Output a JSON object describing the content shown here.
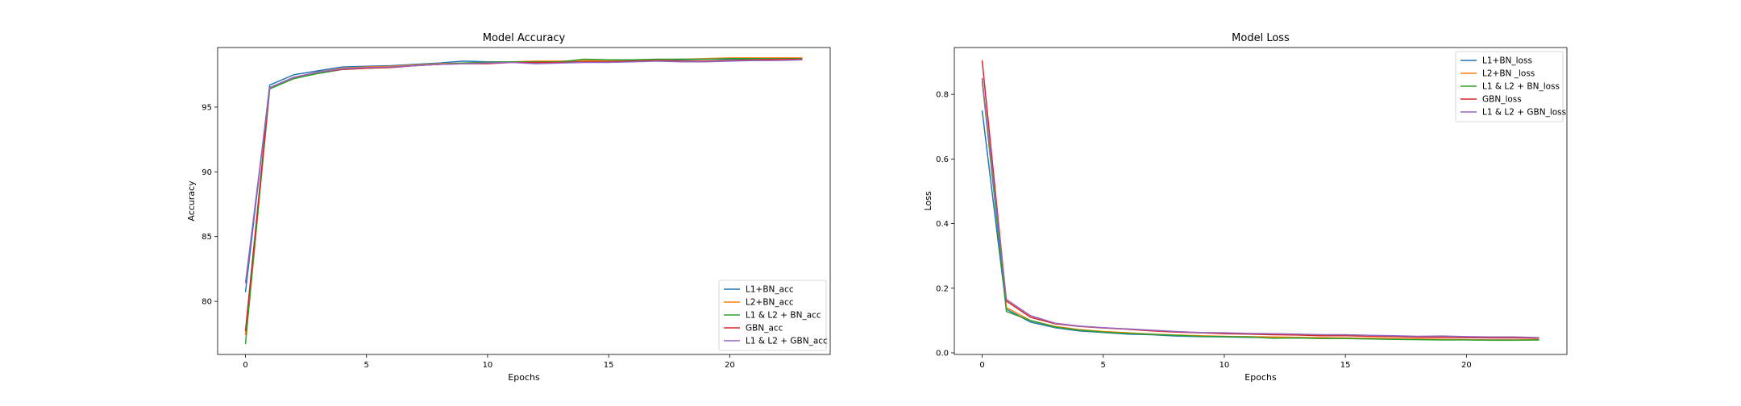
{
  "chart_data": [
    {
      "type": "line",
      "title": "Model Accuracy",
      "xlabel": "Epochs",
      "ylabel": "Accuracy",
      "xlim": [
        -1.15,
        24.15
      ],
      "ylim": [
        75.9,
        99.6
      ],
      "xticks": [
        0,
        5,
        10,
        15,
        20
      ],
      "yticks": [
        80,
        85,
        90,
        95
      ],
      "x_tick_labels": [
        "0",
        "5",
        "10",
        "15",
        "20"
      ],
      "y_tick_labels": [
        "80",
        "85",
        "90",
        "95"
      ],
      "grid": false,
      "legend_position": "lower-right",
      "x": [
        0,
        1,
        2,
        3,
        4,
        5,
        6,
        7,
        8,
        9,
        10,
        11,
        12,
        13,
        14,
        15,
        16,
        17,
        18,
        19,
        20,
        21,
        22,
        23
      ],
      "series": [
        {
          "name": "L1+BN_acc",
          "color": "#1f77b4",
          "values": [
            80.7,
            96.7,
            97.5,
            97.8,
            98.1,
            98.15,
            98.2,
            98.3,
            98.4,
            98.55,
            98.5,
            98.5,
            98.45,
            98.5,
            98.6,
            98.55,
            98.6,
            98.65,
            98.65,
            98.7,
            98.7,
            98.7,
            98.75,
            98.75
          ]
        },
        {
          "name": "L2+BN_acc",
          "color": "#ff7f0e",
          "values": [
            77.4,
            96.5,
            97.2,
            97.7,
            98.0,
            98.1,
            98.15,
            98.25,
            98.35,
            98.4,
            98.45,
            98.5,
            98.55,
            98.55,
            98.6,
            98.6,
            98.65,
            98.65,
            98.7,
            98.75,
            98.8,
            98.8,
            98.8,
            98.8
          ]
        },
        {
          "name": "L1 & L2 + BN_acc",
          "color": "#2ca02c",
          "values": [
            76.7,
            96.4,
            97.2,
            97.6,
            97.9,
            98.0,
            98.1,
            98.2,
            98.3,
            98.4,
            98.45,
            98.5,
            98.5,
            98.5,
            98.7,
            98.65,
            98.65,
            98.7,
            98.7,
            98.7,
            98.75,
            98.75,
            98.75,
            98.75
          ]
        },
        {
          "name": "GBN_acc",
          "color": "#d62728",
          "values": [
            77.7,
            96.5,
            97.3,
            97.7,
            97.9,
            98.0,
            98.05,
            98.2,
            98.3,
            98.35,
            98.35,
            98.45,
            98.45,
            98.45,
            98.5,
            98.5,
            98.55,
            98.6,
            98.55,
            98.55,
            98.6,
            98.65,
            98.7,
            98.7
          ]
        },
        {
          "name": "L1 & L2 + GBN_acc",
          "color": "#9467bd",
          "values": [
            81.4,
            96.5,
            97.3,
            97.7,
            97.95,
            98.05,
            98.1,
            98.2,
            98.3,
            98.35,
            98.4,
            98.45,
            98.35,
            98.4,
            98.45,
            98.45,
            98.5,
            98.55,
            98.5,
            98.5,
            98.55,
            98.6,
            98.6,
            98.65
          ]
        }
      ]
    },
    {
      "type": "line",
      "title": "Model Loss",
      "xlabel": "Epochs",
      "ylabel": "Loss",
      "xlim": [
        -1.15,
        24.15
      ],
      "ylim": [
        -0.005,
        0.945
      ],
      "xticks": [
        0,
        5,
        10,
        15,
        20
      ],
      "yticks": [
        0.0,
        0.2,
        0.4,
        0.6,
        0.8
      ],
      "x_tick_labels": [
        "0",
        "5",
        "10",
        "15",
        "20"
      ],
      "y_tick_labels": [
        "0.0",
        "0.2",
        "0.4",
        "0.6",
        "0.8"
      ],
      "grid": false,
      "legend_position": "upper-right",
      "x": [
        0,
        1,
        2,
        3,
        4,
        5,
        6,
        7,
        8,
        9,
        10,
        11,
        12,
        13,
        14,
        15,
        16,
        17,
        18,
        19,
        20,
        21,
        22,
        23
      ],
      "series": [
        {
          "name": "L1+BN_loss",
          "color": "#1f77b4",
          "values": [
            0.75,
            0.135,
            0.095,
            0.078,
            0.068,
            0.063,
            0.058,
            0.056,
            0.052,
            0.05,
            0.049,
            0.048,
            0.047,
            0.046,
            0.045,
            0.045,
            0.044,
            0.043,
            0.042,
            0.042,
            0.041,
            0.04,
            0.04,
            0.04
          ]
        },
        {
          "name": "L2+BN _loss",
          "color": "#ff7f0e",
          "values": [
            0.84,
            0.14,
            0.1,
            0.082,
            0.072,
            0.066,
            0.062,
            0.058,
            0.055,
            0.053,
            0.051,
            0.05,
            0.049,
            0.048,
            0.047,
            0.046,
            0.045,
            0.044,
            0.043,
            0.042,
            0.041,
            0.04,
            0.04,
            0.041
          ]
        },
        {
          "name": "L1 & L2 + BN_loss",
          "color": "#2ca02c",
          "values": [
            0.85,
            0.128,
            0.1,
            0.08,
            0.07,
            0.064,
            0.06,
            0.057,
            0.054,
            0.051,
            0.05,
            0.049,
            0.045,
            0.046,
            0.044,
            0.044,
            0.043,
            0.042,
            0.041,
            0.04,
            0.04,
            0.039,
            0.039,
            0.04
          ]
        },
        {
          "name": "GBN_loss",
          "color": "#d62728",
          "values": [
            0.905,
            0.16,
            0.11,
            0.09,
            0.082,
            0.077,
            0.073,
            0.068,
            0.064,
            0.062,
            0.059,
            0.058,
            0.056,
            0.055,
            0.053,
            0.053,
            0.051,
            0.05,
            0.048,
            0.048,
            0.047,
            0.046,
            0.046,
            0.045
          ]
        },
        {
          "name": "L1 & L2 + GBN_loss",
          "color": "#9467bd",
          "values": [
            0.85,
            0.165,
            0.115,
            0.092,
            0.083,
            0.078,
            0.074,
            0.07,
            0.066,
            0.063,
            0.062,
            0.06,
            0.059,
            0.058,
            0.056,
            0.056,
            0.054,
            0.053,
            0.051,
            0.052,
            0.05,
            0.049,
            0.049,
            0.047
          ]
        }
      ]
    }
  ]
}
